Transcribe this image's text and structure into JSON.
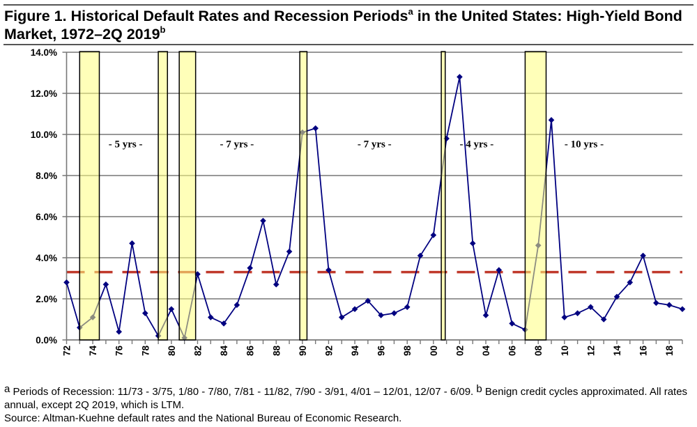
{
  "figure": {
    "title_main": "Figure 1.  Historical Default Rates and Recession Periods",
    "title_sup_a": "a",
    "title_mid": " in the United States: High-Yield Bond Market, 1972–2Q 2019",
    "title_sup_b": "b"
  },
  "notes": {
    "sup_a": "a",
    "recession_text": " Periods of Recession: 11/73 - 3/75, 1/80 - 7/80, 7/81 - 11/82, 7/90 - 3/91, 4/01 – 12/01, 12/07 - 6/09. ",
    "sup_b": "b",
    "benign_text": " Benign credit cycles approximated. All rates annual, except 2Q 2019, which is LTM.",
    "source": "Source: Altman-Kuehne default rates and the National Bureau of Economic Research."
  },
  "chart_data": {
    "type": "line",
    "title": "Historical Default Rates and Recession Periods in the United States: High-Yield Bond Market, 1972–2Q 2019",
    "xlabel": "",
    "ylabel": "",
    "x": [
      1972,
      1973,
      1974,
      1975,
      1976,
      1977,
      1978,
      1979,
      1980,
      1981,
      1982,
      1983,
      1984,
      1985,
      1986,
      1987,
      1988,
      1989,
      1990,
      1991,
      1992,
      1993,
      1994,
      1995,
      1996,
      1997,
      1998,
      1999,
      2000,
      2001,
      2002,
      2003,
      2004,
      2005,
      2006,
      2007,
      2008,
      2009,
      2010,
      2011,
      2012,
      2013,
      2014,
      2015,
      2016,
      2017,
      2018,
      2019
    ],
    "series": [
      {
        "name": "Default Rate",
        "color": "#000080",
        "values": [
          2.8,
          0.6,
          1.1,
          2.7,
          0.4,
          4.7,
          1.3,
          0.2,
          1.5,
          0.1,
          3.2,
          1.1,
          0.8,
          1.7,
          3.5,
          5.8,
          2.7,
          4.3,
          10.1,
          10.3,
          3.4,
          1.1,
          1.5,
          1.9,
          1.2,
          1.3,
          1.6,
          4.1,
          5.1,
          9.8,
          12.8,
          4.7,
          1.2,
          3.4,
          0.8,
          0.5,
          4.6,
          10.7,
          1.1,
          1.3,
          1.6,
          1.0,
          2.1,
          2.8,
          4.1,
          1.8,
          1.7,
          1.5
        ]
      }
    ],
    "average_line": {
      "value": 3.3,
      "color": "#c0392b",
      "style": "dashed"
    },
    "recessions": [
      {
        "start": 1973.0,
        "end": 1974.5
      },
      {
        "start": 1979.0,
        "end": 1979.7
      },
      {
        "start": 1980.6,
        "end": 1981.85
      },
      {
        "start": 1989.8,
        "end": 1990.35
      },
      {
        "start": 2000.6,
        "end": 2000.9
      },
      {
        "start": 2007.0,
        "end": 2008.6
      }
    ],
    "recession_color": "#ffff80",
    "annotations": [
      {
        "text": "- 5 yrs -",
        "x": 1976.5,
        "y": 9.55
      },
      {
        "text": "- 7 yrs -",
        "x": 1985.0,
        "y": 9.55
      },
      {
        "text": "- 7 yrs -",
        "x": 1995.5,
        "y": 9.55
      },
      {
        "text": "- 4 yrs -",
        "x": 2003.3,
        "y": 9.55
      },
      {
        "text": "- 10 yrs -",
        "x": 2011.5,
        "y": 9.55
      }
    ],
    "yticks": [
      "0.0%",
      "2.0%",
      "4.0%",
      "6.0%",
      "8.0%",
      "10.0%",
      "12.0%",
      "14.0%"
    ],
    "ytick_values": [
      0,
      2,
      4,
      6,
      8,
      10,
      12,
      14
    ],
    "xtick_labels": [
      "72",
      "74",
      "76",
      "78",
      "80",
      "82",
      "84",
      "86",
      "88",
      "90",
      "92",
      "94",
      "96",
      "98",
      "00",
      "02",
      "04",
      "06",
      "08",
      "10",
      "12",
      "14",
      "16",
      "18"
    ],
    "xtick_years": [
      1972,
      1974,
      1976,
      1978,
      1980,
      1982,
      1984,
      1986,
      1988,
      1990,
      1992,
      1994,
      1996,
      1998,
      2000,
      2002,
      2004,
      2006,
      2008,
      2010,
      2012,
      2014,
      2016,
      2018
    ],
    "xlim": [
      1972,
      2019
    ],
    "ylim": [
      0,
      14
    ],
    "grid": true,
    "legend": "none"
  }
}
